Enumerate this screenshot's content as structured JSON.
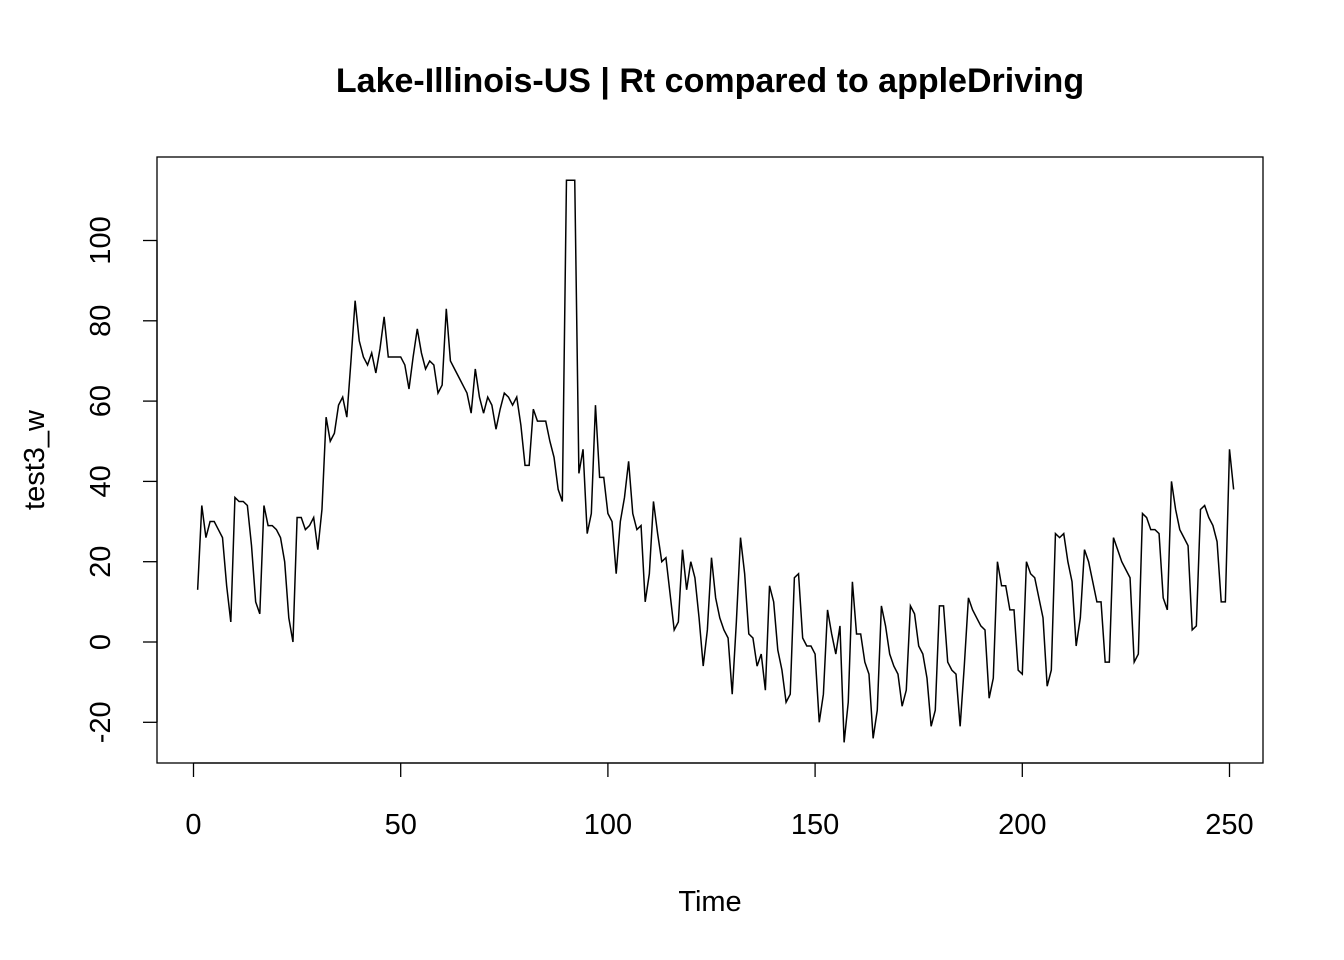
{
  "chart_data": {
    "type": "line",
    "title": "Lake-Illinois-US | Rt compared to appleDriving",
    "xlabel": "Time",
    "ylabel": "test3_w",
    "xlim": [
      0,
      250
    ],
    "ylim": [
      -30,
      120
    ],
    "x_ticks": [
      0,
      50,
      100,
      150,
      200,
      250
    ],
    "y_ticks": [
      -20,
      0,
      20,
      40,
      60,
      80,
      100
    ],
    "x_tick_labels": [
      "0",
      "50",
      "100",
      "150",
      "200",
      "250"
    ],
    "y_tick_labels": [
      "-20",
      "0",
      "20",
      "40",
      "60",
      "80",
      "100"
    ],
    "grid": false,
    "legend": "none",
    "series": [
      {
        "x_start": 1,
        "x_step": 1,
        "values": [
          13,
          34,
          26,
          30,
          30,
          28,
          26,
          14,
          5,
          36,
          35,
          35,
          34,
          24,
          10,
          7,
          34,
          29,
          29,
          28,
          26,
          20,
          6,
          0,
          31,
          31,
          28,
          29,
          31,
          23,
          33,
          56,
          50,
          52,
          59,
          61,
          56,
          70,
          85,
          75,
          71,
          69,
          72,
          67,
          73,
          81,
          71,
          71,
          71,
          71,
          69,
          63,
          71,
          78,
          72,
          68,
          70,
          69,
          62,
          64,
          83,
          70,
          68,
          66,
          64,
          62,
          57,
          68,
          61,
          57,
          61,
          59,
          53,
          58,
          62,
          61,
          59,
          61,
          54,
          44,
          44,
          58,
          55,
          55,
          55,
          50,
          46,
          38,
          35,
          115,
          115,
          115,
          42,
          48,
          27,
          32,
          59,
          41,
          41,
          32,
          30,
          17,
          30,
          36,
          45,
          32,
          28,
          29,
          10,
          17,
          35,
          27,
          20,
          21,
          12,
          3,
          5,
          23,
          13,
          20,
          16,
          6,
          -6,
          3,
          21,
          11,
          6,
          3,
          1,
          -13,
          5,
          26,
          17,
          2,
          1,
          -6,
          -3,
          -12,
          14,
          10,
          -2,
          -7,
          -15,
          -13,
          16,
          17,
          1,
          -1,
          -1,
          -3,
          -20,
          -13,
          8,
          2,
          -3,
          4,
          -25,
          -15,
          15,
          2,
          2,
          -5,
          -8,
          -24,
          -17,
          9,
          4,
          -3,
          -6,
          -8,
          -16,
          -12,
          9,
          7,
          -1,
          -3,
          -9,
          -21,
          -17,
          9,
          9,
          -5,
          -7,
          -8,
          -21,
          -6,
          11,
          8,
          6,
          4,
          3,
          -14,
          -9,
          20,
          14,
          14,
          8,
          8,
          -7,
          -8,
          20,
          17,
          16,
          11,
          6,
          -11,
          -7,
          27,
          26,
          27,
          20,
          15,
          -1,
          6,
          23,
          20,
          15,
          10,
          10,
          -5,
          -5,
          26,
          23,
          20,
          18,
          16,
          -5,
          -3,
          32,
          31,
          28,
          28,
          27,
          11,
          8,
          40,
          33,
          28,
          26,
          24,
          3,
          4,
          33,
          34,
          31,
          29,
          25,
          10,
          10,
          48,
          38
        ]
      }
    ]
  }
}
